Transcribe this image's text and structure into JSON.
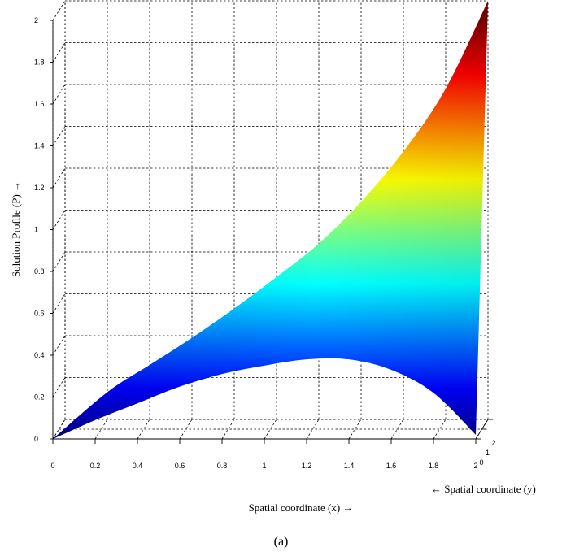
{
  "caption": "(a)",
  "chart_data": {
    "type": "surface",
    "title": "",
    "xlabel": "Spatial coordinate (x) →",
    "ylabel": "← Spatial coordinate (y)",
    "zlabel": "Solution Profile (P) →",
    "x_ticks": [
      "0",
      "0.2",
      "0.4",
      "0.6",
      "0.8",
      "1",
      "1.2",
      "1.4",
      "1.6",
      "1.8",
      "2"
    ],
    "y_ticks": [
      "0",
      "1",
      "2"
    ],
    "z_ticks": [
      "0",
      "0.2",
      "0.4",
      "0.6",
      "0.8",
      "1",
      "1.2",
      "1.4",
      "1.6",
      "1.8",
      "2"
    ],
    "xlim": [
      0,
      2
    ],
    "ylim": [
      0,
      2
    ],
    "zlim": [
      0,
      2
    ],
    "grid": true,
    "colormap": "jet",
    "surface_upper_edge": {
      "x": [
        0,
        0.2,
        0.4,
        0.6,
        0.8,
        1.0,
        1.2,
        1.4,
        1.6,
        1.8,
        2.0
      ],
      "P": [
        0,
        0.13,
        0.26,
        0.39,
        0.53,
        0.68,
        0.84,
        1.04,
        1.28,
        1.58,
        2.0
      ]
    },
    "surface_lower_edge": {
      "x": [
        0,
        0.2,
        0.4,
        0.6,
        0.8,
        1.0,
        1.2,
        1.4,
        1.6,
        1.8,
        2.0
      ],
      "P": [
        0,
        0.09,
        0.17,
        0.25,
        0.31,
        0.35,
        0.38,
        0.38,
        0.33,
        0.22,
        0.02
      ]
    }
  }
}
